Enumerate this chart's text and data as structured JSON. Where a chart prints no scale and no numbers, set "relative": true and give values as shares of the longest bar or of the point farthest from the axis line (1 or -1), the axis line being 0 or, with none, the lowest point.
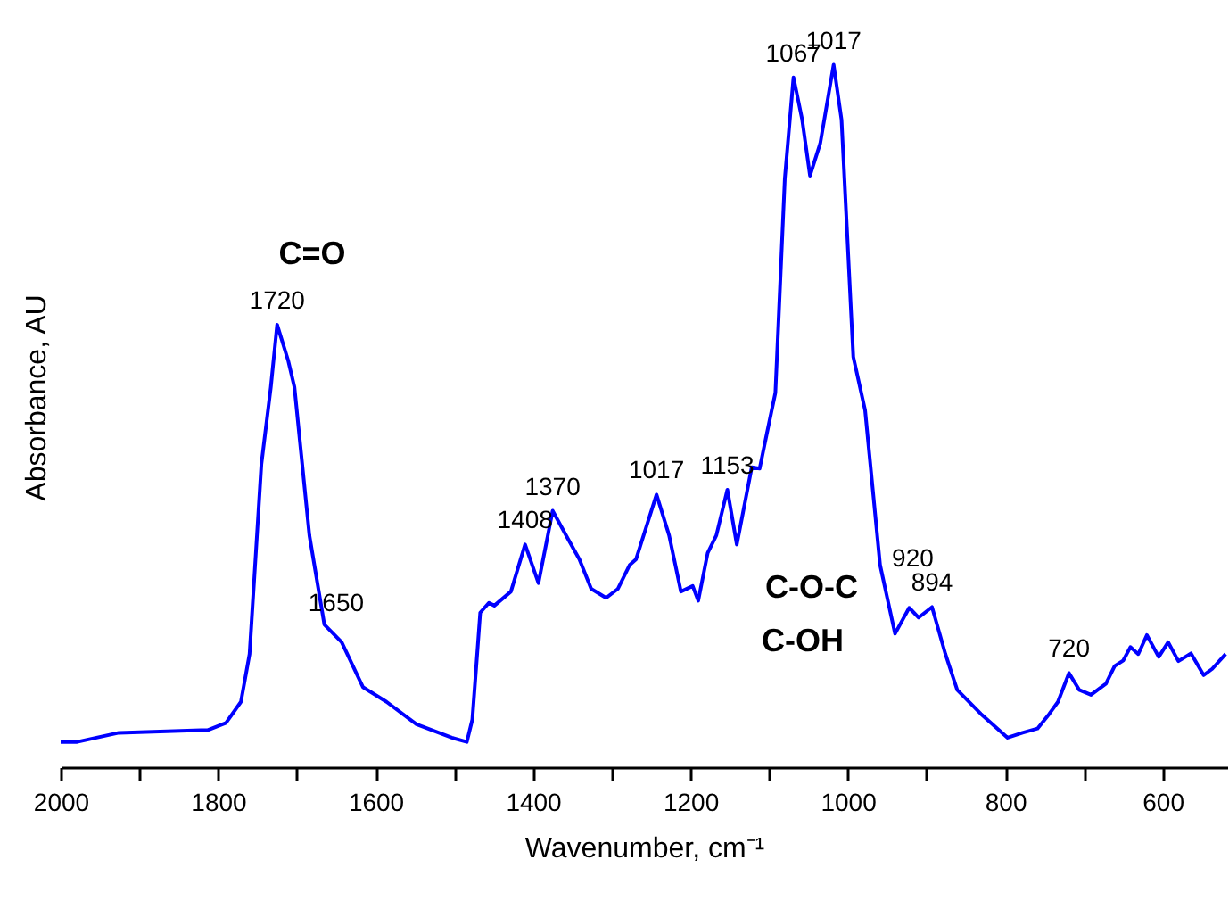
{
  "chart_data": {
    "type": "line",
    "relative": true,
    "xlabel": "Wavenumber, cm⁻¹",
    "ylabel": "Absorbance, AU",
    "xlim": [
      2000,
      518
    ],
    "xticks": [
      2000,
      {
        "value": 1900,
        "label": null
      },
      1800,
      {
        "value": 1700,
        "label": null
      },
      1600,
      {
        "value": 1500,
        "label": null
      },
      1400,
      {
        "value": 1300,
        "label": null
      },
      1200,
      {
        "value": 1100,
        "label": null
      },
      1000,
      {
        "value": 900,
        "label": null
      },
      800,
      {
        "value": 700,
        "label": null
      },
      600
    ],
    "grid": false,
    "marker": "none",
    "line_style": "solid",
    "series": [
      {
        "color": "#0000ff",
        "x": [
          2000,
          1979,
          1926,
          1813,
          1790,
          1771,
          1760,
          1745,
          1733,
          1725,
          1711,
          1703,
          1684,
          1665,
          1643,
          1616,
          1586,
          1548,
          1503,
          1484,
          1477,
          1467,
          1456,
          1449,
          1428,
          1410,
          1393,
          1375,
          1356,
          1341,
          1326,
          1307,
          1292,
          1277,
          1269,
          1243,
          1227,
          1212,
          1197,
          1190,
          1178,
          1167,
          1153,
          1141,
          1122,
          1112,
          1103,
          1092,
          1080,
          1069,
          1058,
          1048,
          1035,
          1018,
          1008,
          993,
          978,
          959,
          940,
          922,
          910,
          893,
          876,
          861,
          831,
          797,
          778,
          759,
          744,
          733,
          719,
          706,
          691,
          672,
          661,
          650,
          641,
          631,
          620,
          605,
          593,
          580,
          564,
          548,
          537,
          520
        ],
        "values": [
          0.036,
          0.036,
          0.049,
          0.053,
          0.063,
          0.093,
          0.161,
          0.431,
          0.541,
          0.63,
          0.579,
          0.541,
          0.33,
          0.203,
          0.178,
          0.114,
          0.093,
          0.061,
          0.042,
          0.036,
          0.068,
          0.22,
          0.234,
          0.23,
          0.25,
          0.317,
          0.262,
          0.365,
          0.326,
          0.296,
          0.254,
          0.241,
          0.254,
          0.288,
          0.296,
          0.388,
          0.33,
          0.25,
          0.258,
          0.237,
          0.305,
          0.33,
          0.395,
          0.317,
          0.427,
          0.425,
          0.474,
          0.533,
          0.838,
          0.982,
          0.922,
          0.842,
          0.888,
          1.0,
          0.922,
          0.584,
          0.508,
          0.288,
          0.19,
          0.227,
          0.213,
          0.228,
          0.161,
          0.11,
          0.076,
          0.042,
          0.049,
          0.055,
          0.076,
          0.093,
          0.134,
          0.11,
          0.103,
          0.119,
          0.144,
          0.152,
          0.171,
          0.161,
          0.188,
          0.157,
          0.178,
          0.151,
          0.162,
          0.131,
          0.14,
          0.161
        ]
      }
    ],
    "annotations": [
      "C=O",
      {
        "text": "1720",
        "x": 1725,
        "y": 0.63
      },
      {
        "text": "1650",
        "x": 1650,
        "y": 0.2
      },
      {
        "text": "1408",
        "x": 1410,
        "y": 0.317
      },
      {
        "text": "1370",
        "x": 1375,
        "y": 0.365
      },
      {
        "text": "1017",
        "x": 1243,
        "y": 0.388
      },
      {
        "text": "1153",
        "x": 1153,
        "y": 0.395
      },
      {
        "text": "1067",
        "x": 1069,
        "y": 0.982
      },
      {
        "text": "1017",
        "x": 1018,
        "y": 1.0
      },
      {
        "text": "920",
        "x": 922,
        "y": 0.227
      },
      {
        "text": "894",
        "x": 893,
        "y": 0.228
      },
      "C-O-C",
      "C-OH",
      {
        "text": "720",
        "x": 719,
        "y": 0.134
      }
    ]
  }
}
